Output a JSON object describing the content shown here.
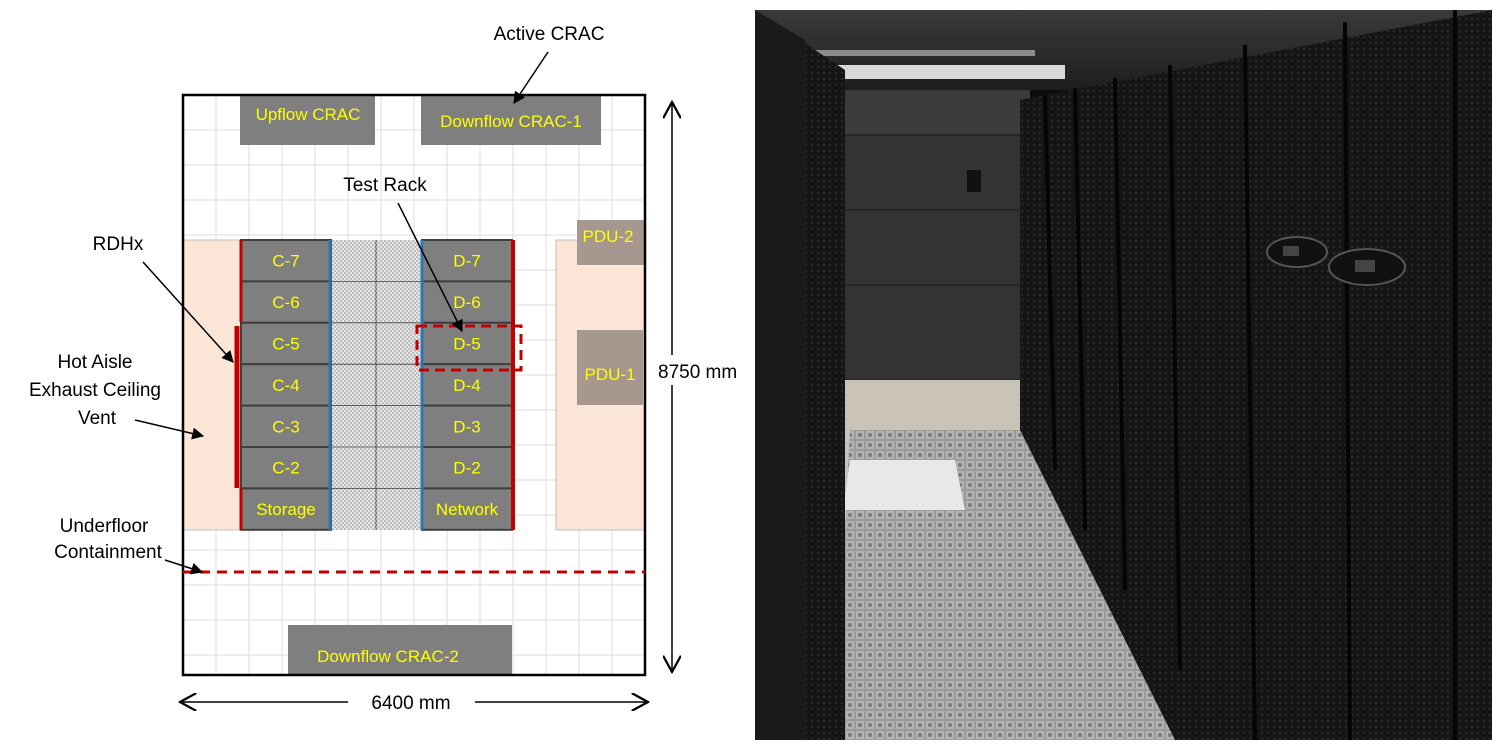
{
  "diagram": {
    "annotations": {
      "active_crac": "Active CRAC",
      "test_rack": "Test Rack",
      "rdhx": "RDHx",
      "hot_aisle_line1": "Hot Aisle",
      "hot_aisle_line2": "Exhaust Ceiling",
      "hot_aisle_line3": "Vent",
      "underfloor_line1": "Underfloor",
      "underfloor_line2": "Containment"
    },
    "units": {
      "upflow_crac": "Upflow CRAC",
      "downflow_crac_1": "Downflow CRAC-1",
      "downflow_crac_2": "Downflow CRAC-2",
      "pdu_1": "PDU-1",
      "pdu_2": "PDU-2"
    },
    "racks_c": [
      "C-7",
      "C-6",
      "C-5",
      "C-4",
      "C-3",
      "C-2",
      "Storage"
    ],
    "racks_d": [
      "D-7",
      "D-6",
      "D-5",
      "D-4",
      "D-3",
      "D-2",
      "Network"
    ],
    "dimensions": {
      "width": "6400 mm",
      "height": "8750 mm"
    },
    "colors": {
      "rack_fill": "#7f7f7f",
      "rack_text": "#ffff00",
      "rdhx_red": "#c00000",
      "cold_blue": "#2e75b6",
      "hot_zone": "#fbe5d6",
      "grid_line": "#d9d9d9"
    }
  },
  "photo": {
    "description_icon": "server-aisle-photo"
  }
}
